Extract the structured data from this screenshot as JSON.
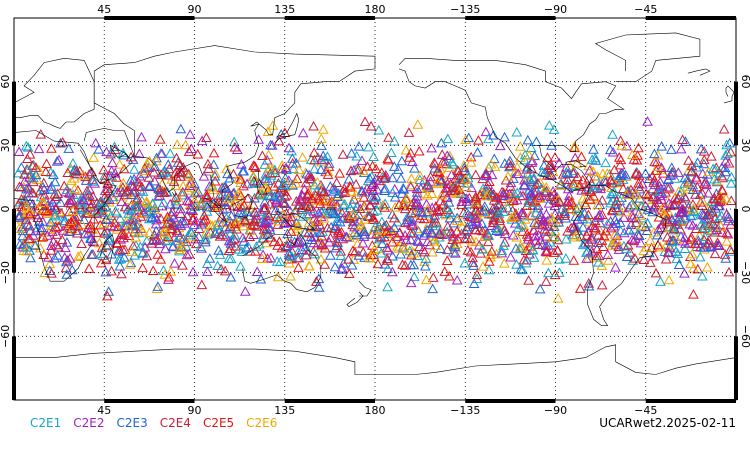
{
  "map": {
    "projection": "cylindrical equidistant",
    "lon_start": 0,
    "lon_end": 360,
    "lat_start": -90,
    "lat_end": 90,
    "grid": "dotted",
    "lon_ticks": [
      {
        "value": 45,
        "label": "45"
      },
      {
        "value": 90,
        "label": "90"
      },
      {
        "value": 135,
        "label": "135"
      },
      {
        "value": 180,
        "label": "180"
      },
      {
        "value": 225,
        "label": "−135"
      },
      {
        "value": 270,
        "label": "−90"
      },
      {
        "value": 315,
        "label": "−45"
      }
    ],
    "lat_ticks": [
      {
        "value": 60,
        "label": "60"
      },
      {
        "value": 30,
        "label": "30"
      },
      {
        "value": 0,
        "label": "0"
      },
      {
        "value": -30,
        "label": "−30"
      },
      {
        "value": -60,
        "label": "−60"
      }
    ],
    "marker_shape": "triangle-outline",
    "observation_lat_range": [
      -45,
      45
    ]
  },
  "legend": [
    {
      "name": "C2E1",
      "color": "#14a8c8"
    },
    {
      "name": "C2E2",
      "color": "#a020c8"
    },
    {
      "name": "C2E3",
      "color": "#1e64dc"
    },
    {
      "name": "C2E4",
      "color": "#c81e3c"
    },
    {
      "name": "C2E5",
      "color": "#e61414"
    },
    {
      "name": "C2E6",
      "color": "#f0a800"
    }
  ],
  "footer": {
    "label": "UCARwet2.2025-02-11"
  }
}
